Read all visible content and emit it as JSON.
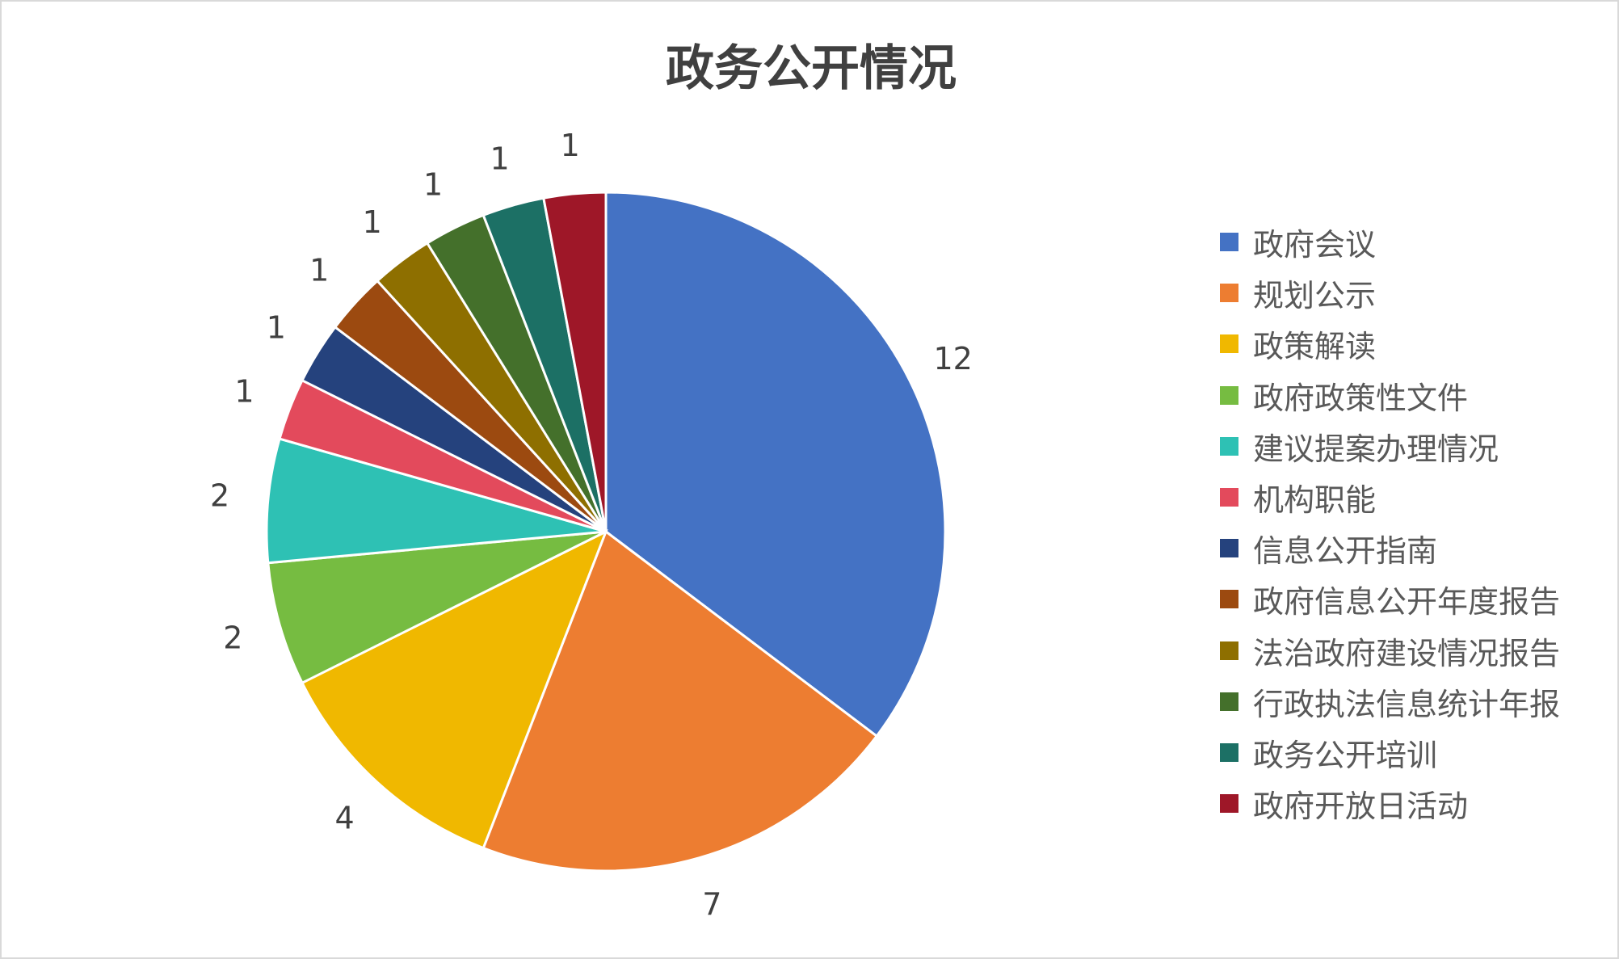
{
  "chart_data": {
    "type": "pie",
    "title": "政务公开情况",
    "categories": [
      "政府会议",
      "规划公示",
      "政策解读",
      "政府政策性文件",
      "建议提案办理情况",
      "机构职能",
      "信息公开指南",
      "政府信息公开年度报告",
      "法治政府建设情况报告",
      "行政执法信息统计年报",
      "政务公开培训",
      "政府开放日活动"
    ],
    "values": [
      12,
      7,
      4,
      2,
      2,
      1,
      1,
      1,
      1,
      1,
      1,
      1
    ],
    "colors": [
      "#4472C4",
      "#ED7D31",
      "#F0B800",
      "#76BC41",
      "#2EC1B4",
      "#E34A5C",
      "#25427D",
      "#9C4A10",
      "#8E6F00",
      "#44702B",
      "#1C7065",
      "#9E1728"
    ],
    "data_labels": true,
    "start_angle": "top",
    "direction": "clockwise",
    "legend": "right"
  }
}
